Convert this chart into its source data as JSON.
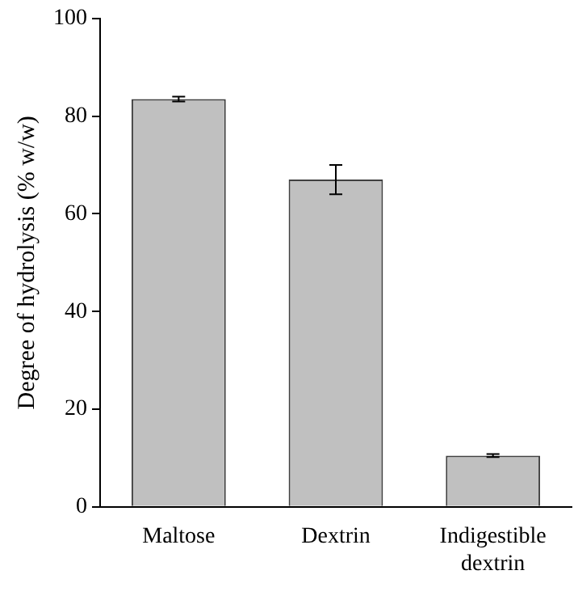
{
  "chart_data": {
    "type": "bar",
    "ylabel": "Degree of hydrolysis (% w/w)",
    "categories": [
      "Maltose",
      "Dextrin",
      "Indigestible dextrin"
    ],
    "values": [
      83.5,
      67,
      10.5
    ],
    "color": "#c0c0c0",
    "errors": [
      0.5,
      3,
      0.3
    ],
    "ylim": [
      0,
      100
    ],
    "yticks": [
      0,
      20,
      40,
      60,
      80,
      100
    ],
    "grid": false,
    "legend": false
  }
}
